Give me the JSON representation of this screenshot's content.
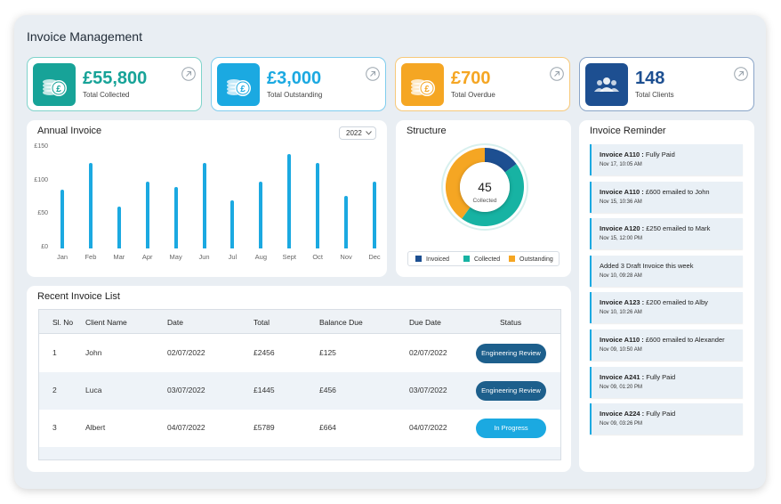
{
  "app_title": "Invoice Management",
  "stats": [
    {
      "value": "£55,800",
      "label": "Total Collected",
      "color": "#17a398",
      "icon": "coins-pound-icon"
    },
    {
      "value": "£3,000",
      "label": "Total Outstanding",
      "color": "#1ba9e1",
      "icon": "coins-pound-icon"
    },
    {
      "value": "£700",
      "label": "Total Overdue",
      "color": "#f5a623",
      "icon": "coins-pound-icon"
    },
    {
      "value": "148",
      "label": "Total Clients",
      "color": "#1d4f91",
      "icon": "users-icon"
    }
  ],
  "annual": {
    "title": "Annual Invoice",
    "year": "2022",
    "chart_data": {
      "type": "bar",
      "title": "Annual Invoice",
      "categories": [
        "Jan",
        "Feb",
        "Mar",
        "Apr",
        "May",
        "Jun",
        "Jul",
        "Aug",
        "Sept",
        "Oct",
        "Nov",
        "Dec"
      ],
      "values": [
        88,
        127,
        63,
        100,
        91,
        127,
        72,
        100,
        141,
        127,
        78,
        100
      ],
      "ytick_labels": [
        "£150",
        "£100",
        "£50",
        "£0"
      ],
      "ylim": [
        0,
        150
      ],
      "grid": false,
      "color": "#1ba9e1"
    }
  },
  "structure": {
    "title": "Structure",
    "center_value": "45",
    "center_label": "Collected",
    "chart_data": {
      "type": "pie",
      "labels": [
        "Invoiced",
        "Collected",
        "Outstanding"
      ],
      "values": [
        15,
        45,
        40
      ],
      "colors": [
        "#1d4f91",
        "#17b3a3",
        "#f5a623"
      ]
    },
    "legend": [
      {
        "label": "Invoiced",
        "color": "#1d4f91"
      },
      {
        "label": "Collected",
        "color": "#17b3a3"
      },
      {
        "label": "Outstanding",
        "color": "#f5a623"
      }
    ]
  },
  "reminder": {
    "title": "Invoice Reminder",
    "items": [
      {
        "bold": "Invoice A110 :",
        "rest": " Fully Paid",
        "time": "Nov 17, 10:05 AM"
      },
      {
        "bold": "Invoice A110 :",
        "rest": " £600 emailed to John",
        "time": "Nov 15, 10:36 AM"
      },
      {
        "bold": "Invoice A120 :",
        "rest": " £250 emailed to Mark",
        "time": "Nov 15, 12:00 PM"
      },
      {
        "bold": "",
        "rest": "Added 3 Draft Invoice this week",
        "time": "Nov 10, 09:28 AM"
      },
      {
        "bold": "Invoice A123 :",
        "rest": " £200 emailed to Alby",
        "time": "Nov 10, 10:26 AM"
      },
      {
        "bold": "Invoice A110 :",
        "rest": " £600 emailed to Alexander",
        "time": "Nov 09, 10:50 AM"
      },
      {
        "bold": "Invoice A241 :",
        "rest": " Fully Paid",
        "time": "Nov 09, 01:20 PM"
      },
      {
        "bold": "Invoice A224 :",
        "rest": " Fully Paid",
        "time": "Nov 09, 03:26 PM"
      }
    ]
  },
  "recent": {
    "title": "Recent Invoice List",
    "headers": [
      "Sl. No",
      "Client Name",
      "Date",
      "Total",
      "Balance Due",
      "Due Date",
      "Status"
    ],
    "rows": [
      {
        "no": "1",
        "client": "John",
        "date": "02/07/2022",
        "total": "£2456",
        "balance": "£125",
        "due": "02/07/2022",
        "status": "Engineering Review",
        "status_color": "#1d5f8c"
      },
      {
        "no": "2",
        "client": "Luca",
        "date": "03/07/2022",
        "total": "£1445",
        "balance": "£456",
        "due": "03/07/2022",
        "status": "Engineering Review",
        "status_color": "#1d5f8c"
      },
      {
        "no": "3",
        "client": "Albert",
        "date": "04/07/2022",
        "total": "£5789",
        "balance": "£664",
        "due": "04/07/2022",
        "status": "In Progress",
        "status_color": "#1ba9e1"
      }
    ]
  }
}
